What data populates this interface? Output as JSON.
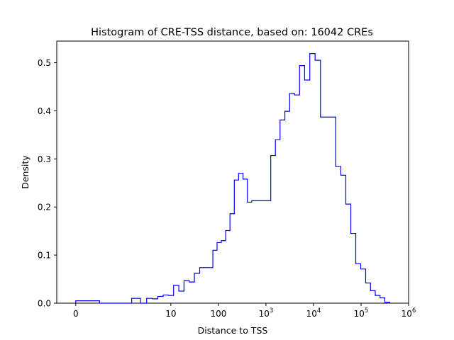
{
  "chart_data": {
    "type": "histogram",
    "title": "Histogram of CRE-TSS distance, based on: 16042 CREs",
    "xlabel": "Distance to TSS",
    "ylabel": "Density",
    "x_scale": "symlog",
    "xlim": [
      -0.4,
      1000000
    ],
    "ylim": [
      0,
      0.545
    ],
    "grid": false,
    "line_color": "#0000ff",
    "x_ticks": [
      {
        "value": 0,
        "label": "0"
      },
      {
        "value": 10,
        "label": "10"
      },
      {
        "value": 100,
        "label": "100"
      },
      {
        "value": 1000,
        "label": "10^3",
        "base": "10",
        "exp": "3"
      },
      {
        "value": 10000,
        "label": "10^4",
        "base": "10",
        "exp": "4"
      },
      {
        "value": 100000,
        "label": "10^5",
        "base": "10",
        "exp": "5"
      },
      {
        "value": 1000000,
        "label": "10^6",
        "base": "10",
        "exp": "6"
      }
    ],
    "y_ticks": [
      {
        "value": 0.0,
        "label": "0.0"
      },
      {
        "value": 0.1,
        "label": "0.1"
      },
      {
        "value": 0.2,
        "label": "0.2"
      },
      {
        "value": 0.3,
        "label": "0.3"
      },
      {
        "value": 0.4,
        "label": "0.4"
      },
      {
        "value": 0.5,
        "label": "0.5"
      }
    ],
    "bin_edges": [
      0,
      0.5,
      1.5,
      2.3,
      3.1,
      4.1,
      5.3,
      6.9,
      8.9,
      11.4,
      14.7,
      18.9,
      24.3,
      31.3,
      40.4,
      52.1,
      76.4,
      93.6,
      115,
      142,
      175,
      216,
      266,
      329,
      406,
      502,
      620,
      766,
      1260,
      1580,
      1980,
      2500,
      3150,
      3990,
      5090,
      6500,
      8350,
      10800,
      14000,
      18200,
      29300,
      37500,
      47800,
      60900,
      77400,
      98400,
      125000,
      158000,
      199000,
      251000,
      315000,
      400000
    ],
    "densities": [
      0.005,
      0.0,
      0.01,
      0.0,
      0.01,
      0.009,
      0.014,
      0.017,
      0.016,
      0.037,
      0.025,
      0.047,
      0.044,
      0.062,
      0.074,
      0.074,
      0.11,
      0.126,
      0.13,
      0.151,
      0.186,
      0.256,
      0.27,
      0.258,
      0.21,
      0.213,
      0.213,
      0.213,
      0.307,
      0.34,
      0.381,
      0.399,
      0.436,
      0.433,
      0.494,
      0.464,
      0.519,
      0.505,
      0.387,
      0.387,
      0.284,
      0.266,
      0.206,
      0.145,
      0.082,
      0.071,
      0.042,
      0.026,
      0.016,
      0.011,
      0.002
    ]
  }
}
